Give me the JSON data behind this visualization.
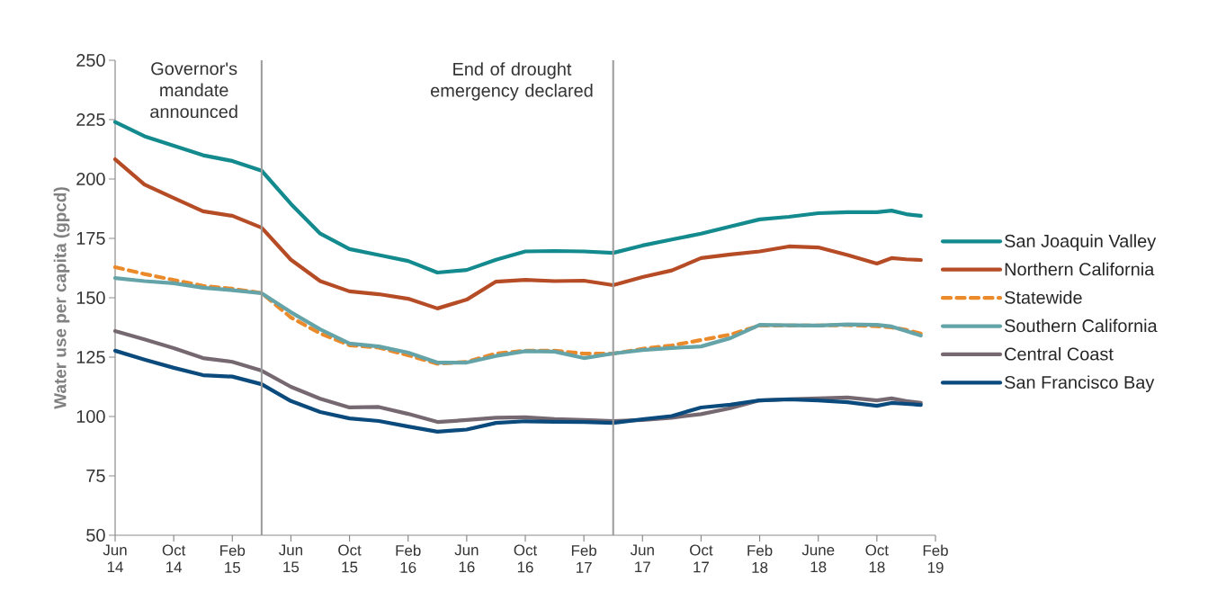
{
  "chart_data": {
    "type": "line",
    "ylabel": "Water use per capita (gpcd)",
    "x": [
      "2014-06",
      "2014-08",
      "2014-10",
      "2014-12",
      "2015-02",
      "2015-04",
      "2015-06",
      "2015-08",
      "2015-10",
      "2015-12",
      "2016-02",
      "2016-04",
      "2016-06",
      "2016-08",
      "2016-10",
      "2016-12",
      "2017-02",
      "2017-04",
      "2017-06",
      "2017-08",
      "2017-10",
      "2017-12",
      "2018-02",
      "2018-04",
      "2018-06",
      "2018-08",
      "2018-10",
      "2018-11",
      "2018-12",
      "2019-01"
    ],
    "series": [
      {
        "name": "San Joaquin Valley",
        "color": "#138a8e",
        "values": [
          224,
          218,
          214,
          210,
          207.6,
          203.5,
          189.5,
          177,
          170.5,
          168,
          165.5,
          160.6,
          161.7,
          166,
          169.5,
          169.7,
          169.5,
          168.9,
          172,
          174.5,
          177,
          180,
          183,
          184.1,
          185.6,
          186,
          186,
          186.7,
          185.2,
          184.5
        ]
      },
      {
        "name": "Northern California",
        "color": "#b64c25",
        "values": [
          208.3,
          197.7,
          192,
          186.4,
          184.5,
          179.5,
          166,
          157,
          152.7,
          151.5,
          149.6,
          145.5,
          149.2,
          156.8,
          157.5,
          157,
          157.2,
          155.3,
          158.7,
          161.5,
          166.7,
          168.2,
          169.5,
          171.6,
          171.2,
          168,
          164.4,
          166.7,
          166.2,
          165.9
        ]
      },
      {
        "name": "Statewide",
        "color": "#ea8a2a",
        "line_style": "dashed",
        "values": [
          162.9,
          160,
          157.5,
          155,
          153.8,
          152,
          141.7,
          135,
          130,
          129,
          125.8,
          122.2,
          123,
          126.5,
          127.7,
          127.7,
          126.5,
          126.5,
          128.5,
          129.9,
          132.2,
          134.5,
          138.3,
          138.3,
          138.3,
          138.5,
          138,
          137.5,
          136.5,
          134.9
        ]
      },
      {
        "name": "Southern California",
        "color": "#64a4a8",
        "values": [
          158.3,
          157,
          156.1,
          154.2,
          153.2,
          151.9,
          143.9,
          136.7,
          130.7,
          129.5,
          126.9,
          122.7,
          122.7,
          125.5,
          127.5,
          127.3,
          124.6,
          126.5,
          128,
          128.8,
          129.5,
          133,
          138.6,
          138.4,
          138.3,
          138.8,
          138.6,
          137.9,
          136,
          134.1
        ]
      },
      {
        "name": "Central Coast",
        "color": "#766871",
        "values": [
          136,
          132.5,
          128.8,
          124.6,
          123,
          119.3,
          112.5,
          107.5,
          103.8,
          104,
          101.1,
          97.7,
          98.5,
          99.5,
          99.7,
          98.9,
          98.5,
          98.1,
          98.5,
          99.5,
          101,
          103.5,
          106.8,
          107.3,
          107.6,
          108,
          106.8,
          107.6,
          106.5,
          105.7
        ]
      },
      {
        "name": "San Francisco Bay",
        "color": "#0b4a7c",
        "values": [
          127.7,
          124,
          120.5,
          117.4,
          116.8,
          113.6,
          106.5,
          101.9,
          99.2,
          98.1,
          95.8,
          93.6,
          94.5,
          97.3,
          98,
          97.8,
          97.7,
          97.3,
          98.8,
          100.2,
          103.8,
          105,
          106.8,
          107.2,
          106.8,
          106,
          104.5,
          105.7,
          105.3,
          104.9
        ]
      }
    ],
    "xlim": [
      "2014-06",
      "2019-02"
    ],
    "xticks": [
      {
        "value": "2014-06",
        "label": "Jun 14"
      },
      {
        "value": "2014-10",
        "label": "Oct 14"
      },
      {
        "value": "2015-02",
        "label": "Feb 15"
      },
      {
        "value": "2015-06",
        "label": "Jun 15"
      },
      {
        "value": "2015-10",
        "label": "Oct 15"
      },
      {
        "value": "2016-02",
        "label": "Feb 16"
      },
      {
        "value": "2016-06",
        "label": "Jun 16"
      },
      {
        "value": "2016-10",
        "label": "Oct 16"
      },
      {
        "value": "2017-02",
        "label": "Feb 17"
      },
      {
        "value": "2017-06",
        "label": "Jun 17"
      },
      {
        "value": "2017-10",
        "label": "Oct 17"
      },
      {
        "value": "2018-02",
        "label": "Feb 18"
      },
      {
        "value": "2018-06",
        "label": "June 18"
      },
      {
        "value": "2018-10",
        "label": "Oct 18"
      },
      {
        "value": "2019-02",
        "label": "Feb 19"
      }
    ],
    "ylim": [
      50,
      250
    ],
    "yticks": [
      50,
      75,
      100,
      125,
      150,
      175,
      200,
      225,
      250
    ],
    "ref_lines": [
      {
        "axis": "x",
        "value": "2015-04",
        "label": "Governor's mandate announced",
        "color": "#9a9a9a"
      },
      {
        "axis": "x",
        "value": "2017-04",
        "label": "End of drought emergency declared",
        "color": "#9a9a9a"
      }
    ],
    "legend": "right",
    "marker": "none",
    "line_style": "solid"
  }
}
